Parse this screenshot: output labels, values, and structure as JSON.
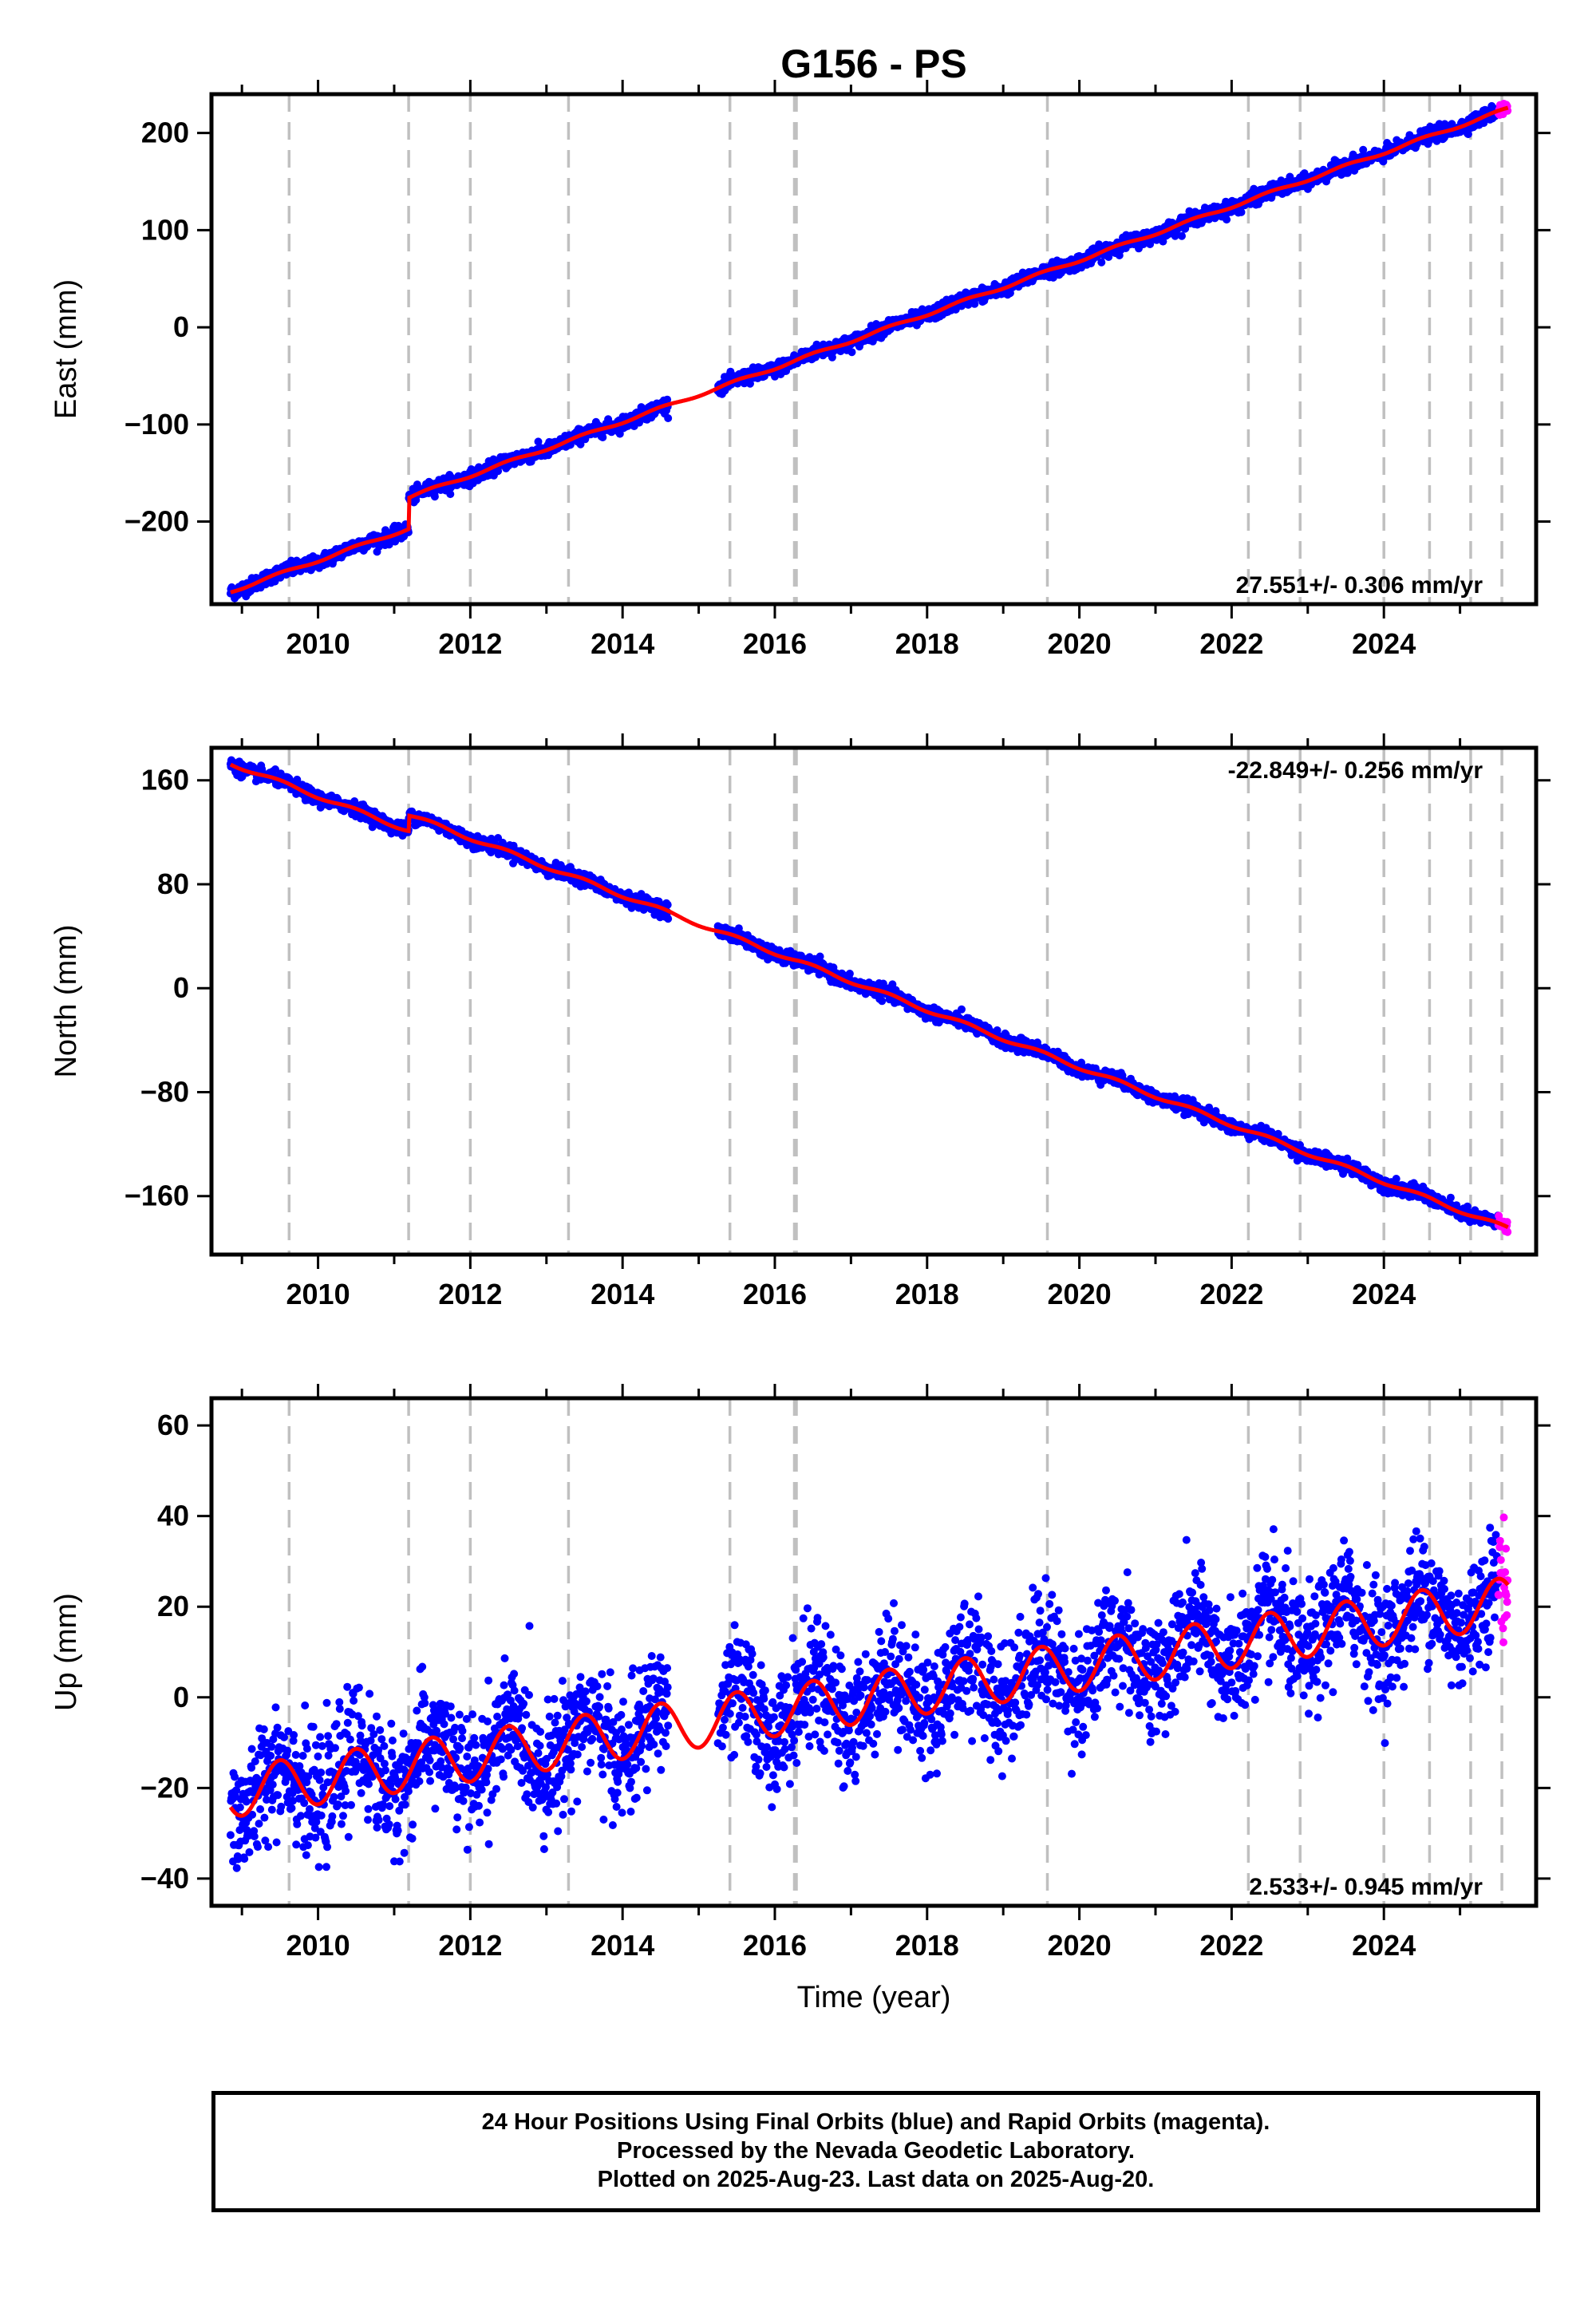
{
  "chart_data": {
    "type": "scatter",
    "title": "G156 - PS",
    "xlabel": "Time (year)",
    "xlim": [
      2008.6,
      2026.0
    ],
    "x_ticks": [
      "2010",
      "2012",
      "2014",
      "2016",
      "2018",
      "2020",
      "2022",
      "2024"
    ],
    "event_lines_year": [
      2009.62,
      2011.19,
      2012.0,
      2013.29,
      2015.41,
      2016.27,
      2019.58,
      2022.22,
      2022.9,
      2024.0,
      2024.6,
      2025.14,
      2025.55
    ],
    "series_legend": [
      {
        "name": "Final Orbits",
        "color": "#0000ff"
      },
      {
        "name": "Rapid Orbits",
        "color": "#ff00ff"
      },
      {
        "name": "model fit",
        "color": "#ff0000"
      }
    ],
    "data_start": 2008.85,
    "data_end": 2025.63,
    "rapid_start": 2025.5,
    "panels": [
      {
        "id": "east",
        "ylabel": "East (mm)",
        "ylim": [
          -285,
          240
        ],
        "y_ticks": [
          -200,
          -100,
          0,
          100,
          200
        ],
        "y_tick_labels": [
          "−200",
          "−100",
          "0",
          "100",
          "200"
        ],
        "rate": "27.551+/- 0.306 mm/yr",
        "rate_position": "bottom-right",
        "start_value": -272,
        "end_value": 225,
        "steps": [
          {
            "year": 2011.19,
            "offset": 32
          }
        ],
        "annual_amplitude": 1.5,
        "scatter": 3.5
      },
      {
        "id": "north",
        "ylabel": "North (mm)",
        "ylim": [
          -205,
          185
        ],
        "y_ticks": [
          -160,
          -80,
          0,
          80,
          160
        ],
        "y_tick_labels": [
          "−160",
          "−80",
          "0",
          "80",
          "160"
        ],
        "rate": "-22.849+/- 0.256 mm/yr",
        "rate_position": "top-right",
        "start_value": 173,
        "end_value": -185,
        "steps": [
          {
            "year": 2011.19,
            "offset": 12
          }
        ],
        "annual_amplitude": 1.5,
        "scatter": 2.5
      },
      {
        "id": "up",
        "ylabel": "Up (mm)",
        "ylim": [
          -46,
          66
        ],
        "y_ticks": [
          -40,
          -20,
          0,
          20,
          40,
          60
        ],
        "y_tick_labels": [
          "−40",
          "−20",
          "0",
          "20",
          "40",
          "60"
        ],
        "rate": "2.533+/- 0.945 mm/yr",
        "rate_position": "bottom-right",
        "start_value": -21,
        "end_value": 21,
        "steps": [],
        "annual_amplitude": 5.5,
        "scatter": 6.5
      }
    ]
  },
  "caption": {
    "line1": "24 Hour Positions Using Final Orbits (blue) and Rapid Orbits (magenta).",
    "line2": "Processed by the Nevada Geodetic Laboratory.",
    "line3": "Plotted on 2025-Aug-23. Last data on 2025-Aug-20."
  }
}
